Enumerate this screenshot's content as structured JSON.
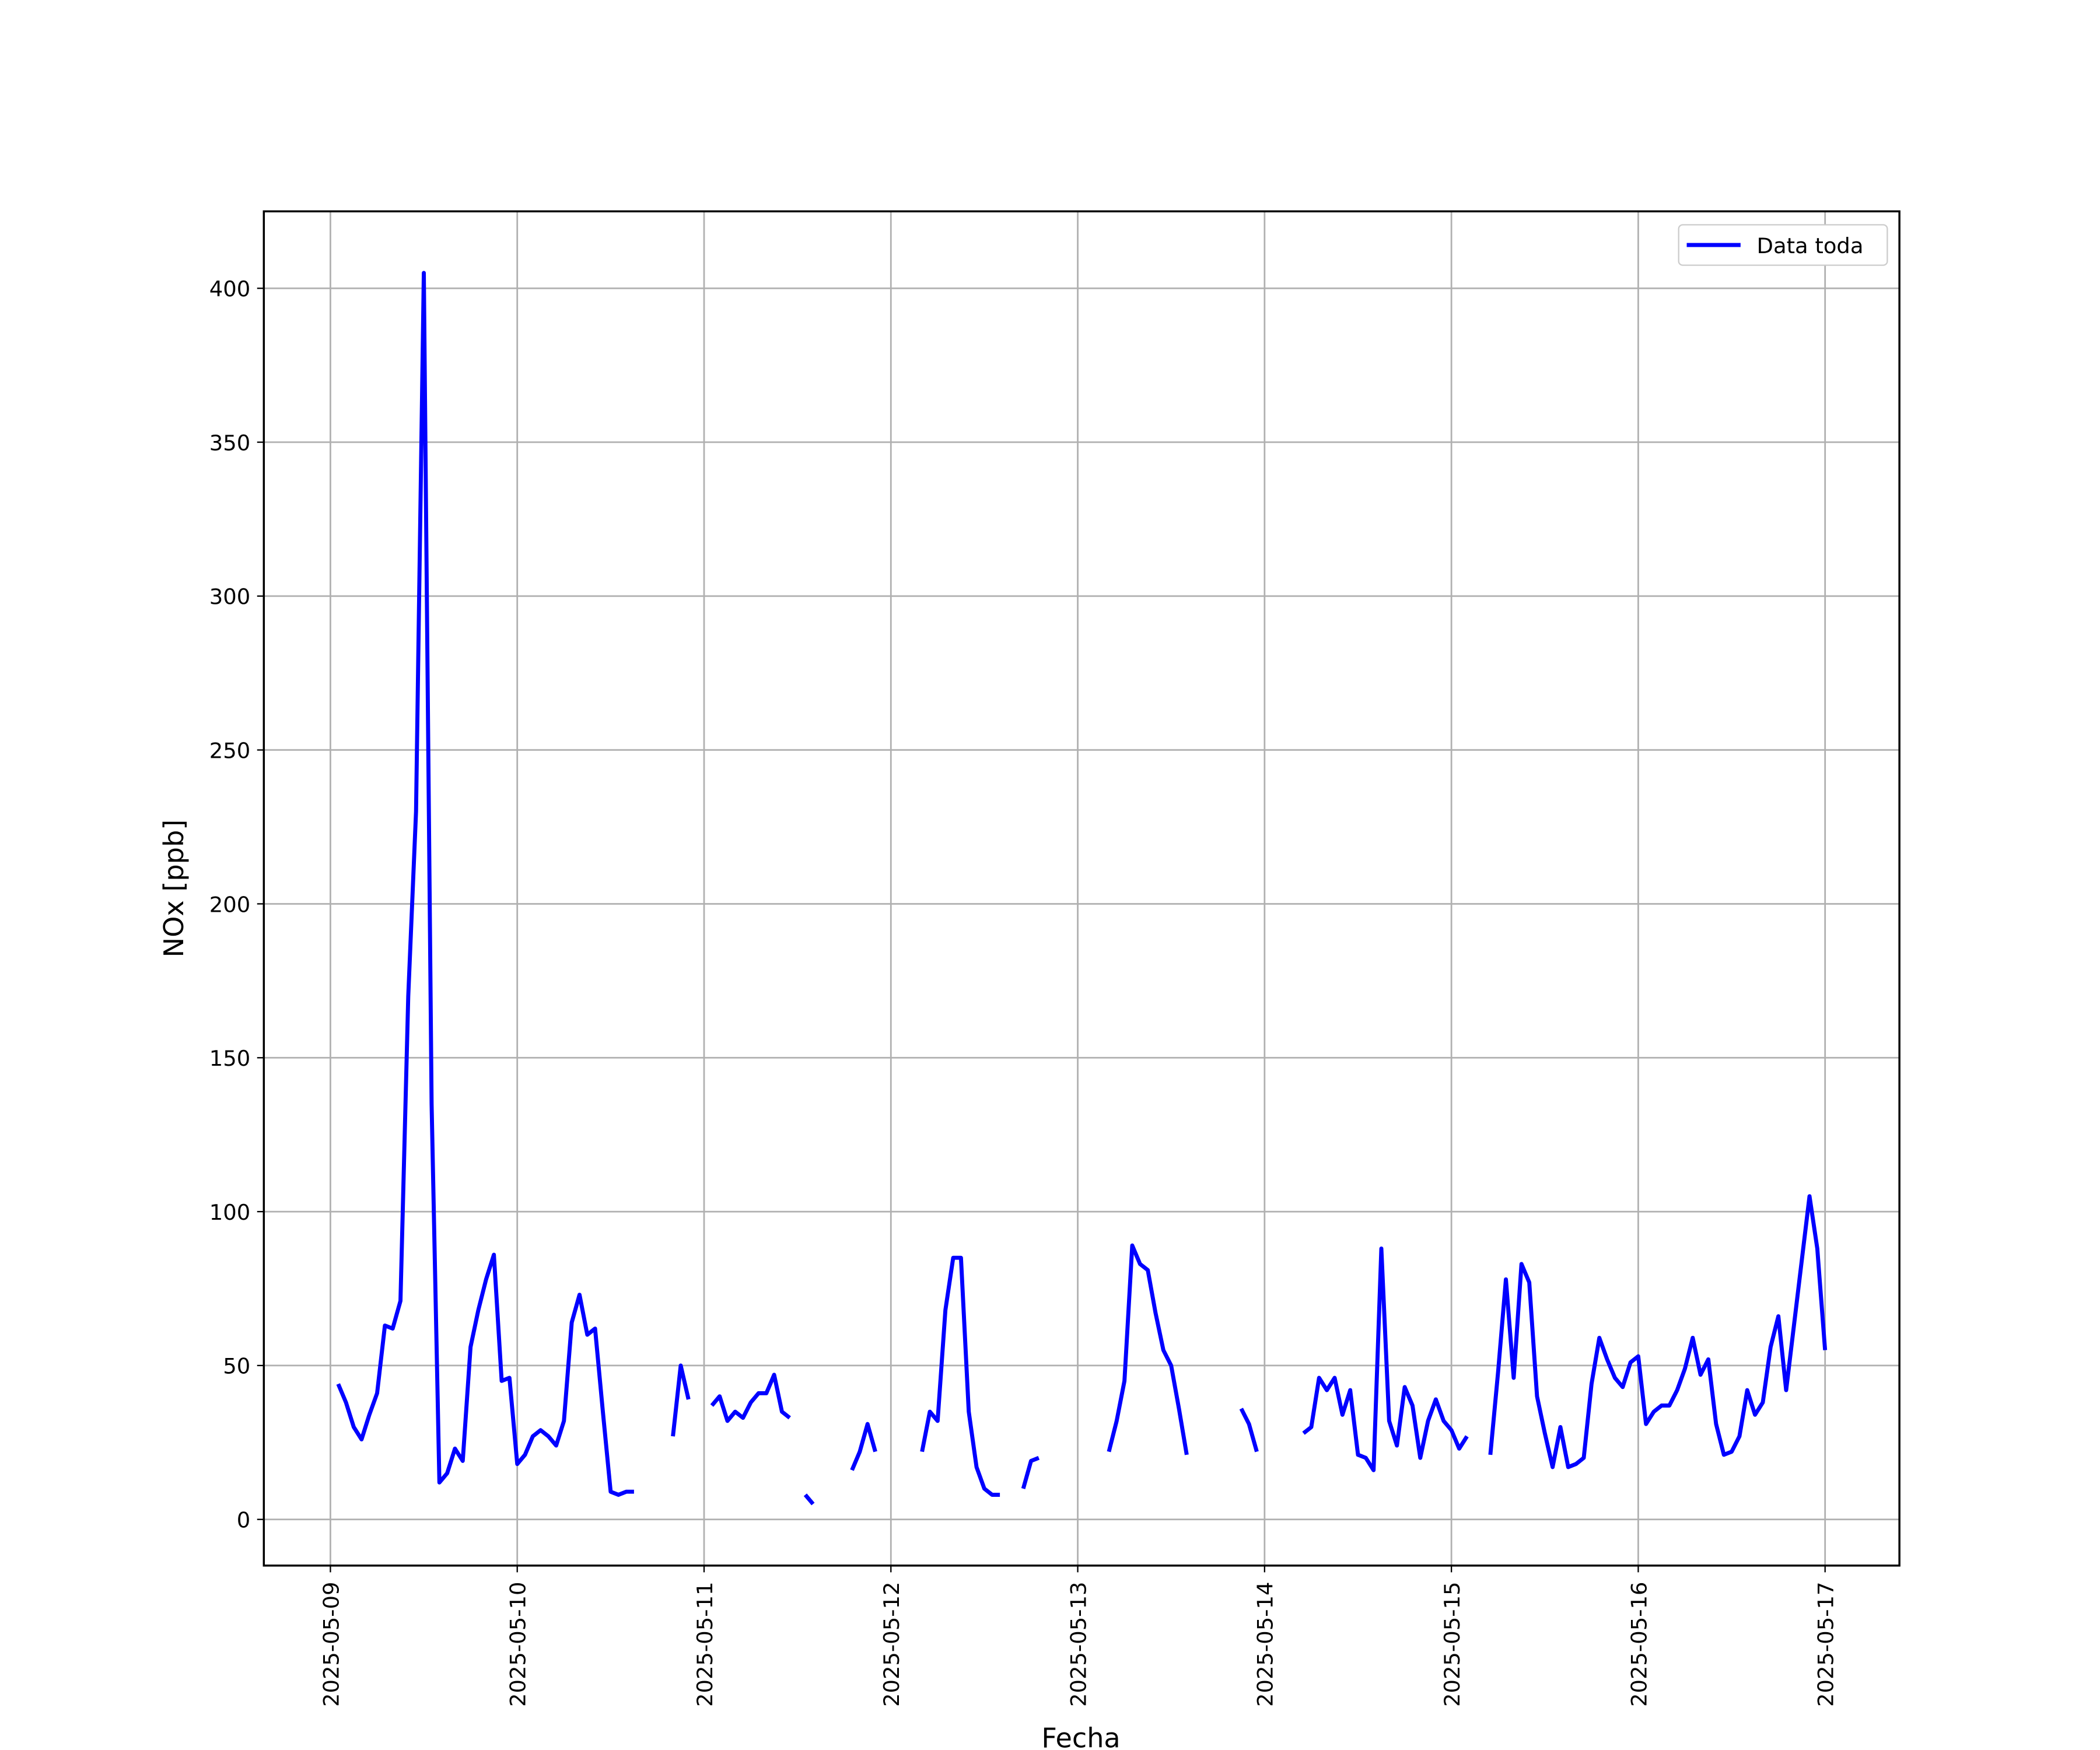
{
  "chart_data": {
    "type": "line",
    "x_label": "Fecha",
    "y_label": "NOx [ppb]",
    "x": [
      "2025-05-09 01:00",
      "2025-05-09 02:00",
      "2025-05-09 03:00",
      "2025-05-09 04:00",
      "2025-05-09 05:00",
      "2025-05-09 06:00",
      "2025-05-09 07:00",
      "2025-05-09 08:00",
      "2025-05-09 09:00",
      "2025-05-09 10:00",
      "2025-05-09 11:00",
      "2025-05-09 12:00",
      "2025-05-09 13:00",
      "2025-05-09 14:00",
      "2025-05-09 15:00",
      "2025-05-09 16:00",
      "2025-05-09 17:00",
      "2025-05-09 18:00",
      "2025-05-09 19:00",
      "2025-05-09 20:00",
      "2025-05-09 21:00",
      "2025-05-09 22:00",
      "2025-05-09 23:00",
      "2025-05-10 00:00",
      "2025-05-10 01:00",
      "2025-05-10 02:00",
      "2025-05-10 03:00",
      "2025-05-10 04:00",
      "2025-05-10 05:00",
      "2025-05-10 06:00",
      "2025-05-10 07:00",
      "2025-05-10 08:00",
      "2025-05-10 09:00",
      "2025-05-10 10:00",
      "2025-05-10 11:00",
      "2025-05-10 12:00",
      "2025-05-10 13:00",
      "2025-05-10 14:00",
      "2025-05-10 15:00",
      "2025-05-10 16:00",
      "2025-05-10 20:00",
      "2025-05-10 21:00",
      "2025-05-10 22:00",
      "2025-05-10 23:00",
      "2025-05-11 01:00",
      "2025-05-11 02:00",
      "2025-05-11 03:00",
      "2025-05-11 04:00",
      "2025-05-11 05:00",
      "2025-05-11 06:00",
      "2025-05-11 07:00",
      "2025-05-11 08:00",
      "2025-05-11 09:00",
      "2025-05-11 10:00",
      "2025-05-11 11:00",
      "2025-05-11 12:00",
      "2025-05-11 13:00",
      "2025-05-11 14:00",
      "2025-05-11 15:00",
      "2025-05-11 19:00",
      "2025-05-11 20:00",
      "2025-05-11 21:00",
      "2025-05-11 22:00",
      "2025-05-11 23:00",
      "2025-05-12 04:00",
      "2025-05-12 05:00",
      "2025-05-12 06:00",
      "2025-05-12 07:00",
      "2025-05-12 08:00",
      "2025-05-12 09:00",
      "2025-05-12 10:00",
      "2025-05-12 11:00",
      "2025-05-12 12:00",
      "2025-05-12 13:00",
      "2025-05-12 14:00",
      "2025-05-12 15:00",
      "2025-05-12 17:00",
      "2025-05-12 18:00",
      "2025-05-12 19:00",
      "2025-05-12 20:00",
      "2025-05-13 04:00",
      "2025-05-13 05:00",
      "2025-05-13 06:00",
      "2025-05-13 07:00",
      "2025-05-13 08:00",
      "2025-05-13 09:00",
      "2025-05-13 10:00",
      "2025-05-13 11:00",
      "2025-05-13 12:00",
      "2025-05-13 13:00",
      "2025-05-13 14:00",
      "2025-05-13 15:00",
      "2025-05-13 21:00",
      "2025-05-13 22:00",
      "2025-05-13 23:00",
      "2025-05-14 00:00",
      "2025-05-14 05:00",
      "2025-05-14 06:00",
      "2025-05-14 07:00",
      "2025-05-14 08:00",
      "2025-05-14 09:00",
      "2025-05-14 10:00",
      "2025-05-14 11:00",
      "2025-05-14 12:00",
      "2025-05-14 13:00",
      "2025-05-14 14:00",
      "2025-05-14 15:00",
      "2025-05-14 16:00",
      "2025-05-14 17:00",
      "2025-05-14 18:00",
      "2025-05-14 19:00",
      "2025-05-14 20:00",
      "2025-05-14 21:00",
      "2025-05-14 22:00",
      "2025-05-14 23:00",
      "2025-05-15 00:00",
      "2025-05-15 01:00",
      "2025-05-15 02:00",
      "2025-05-15 03:00",
      "2025-05-15 05:00",
      "2025-05-15 06:00",
      "2025-05-15 07:00",
      "2025-05-15 08:00",
      "2025-05-15 09:00",
      "2025-05-15 10:00",
      "2025-05-15 11:00",
      "2025-05-15 12:00",
      "2025-05-15 13:00",
      "2025-05-15 14:00",
      "2025-05-15 15:00",
      "2025-05-15 16:00",
      "2025-05-15 17:00",
      "2025-05-15 18:00",
      "2025-05-15 19:00",
      "2025-05-15 20:00",
      "2025-05-15 21:00",
      "2025-05-15 22:00",
      "2025-05-15 23:00",
      "2025-05-16 00:00",
      "2025-05-16 01:00",
      "2025-05-16 02:00",
      "2025-05-16 03:00",
      "2025-05-16 04:00",
      "2025-05-16 05:00",
      "2025-05-16 06:00",
      "2025-05-16 07:00",
      "2025-05-16 08:00",
      "2025-05-16 09:00",
      "2025-05-16 10:00",
      "2025-05-16 11:00",
      "2025-05-16 12:00",
      "2025-05-16 13:00",
      "2025-05-16 14:00",
      "2025-05-16 15:00",
      "2025-05-16 16:00",
      "2025-05-16 17:00",
      "2025-05-16 18:00",
      "2025-05-16 19:00",
      "2025-05-16 20:00",
      "2025-05-16 21:00",
      "2025-05-16 22:00",
      "2025-05-16 23:00",
      "2025-05-17 00:00"
    ],
    "series": [
      {
        "name": "Data toda",
        "color": "#0000ff",
        "values": [
          44,
          38,
          30,
          26,
          34,
          41,
          63,
          62,
          71,
          170,
          230,
          405,
          135,
          12,
          15,
          23,
          19,
          56,
          68,
          78,
          86,
          45,
          46,
          18,
          21,
          27,
          29,
          27,
          24,
          32,
          64,
          73,
          60,
          62,
          35,
          9,
          8,
          9,
          9,
          null,
          27,
          50,
          39,
          null,
          37,
          40,
          32,
          35,
          33,
          38,
          41,
          41,
          47,
          35,
          33,
          null,
          8,
          5,
          null,
          16,
          22,
          31,
          22,
          null,
          22,
          35,
          32,
          68,
          85,
          85,
          35,
          17,
          10,
          8,
          8,
          null,
          10,
          19,
          20,
          null,
          22,
          32,
          45,
          89,
          83,
          81,
          67,
          55,
          50,
          36,
          21,
          null,
          36,
          31,
          22,
          null,
          28,
          30,
          46,
          42,
          46,
          34,
          42,
          21,
          20,
          16,
          88,
          32,
          24,
          43,
          37,
          20,
          32,
          39,
          32,
          29,
          23,
          27,
          null,
          21,
          48,
          78,
          46,
          83,
          77,
          40,
          28,
          17,
          30,
          17,
          18,
          20,
          44,
          59,
          52,
          46,
          43,
          51,
          53,
          31,
          35,
          37,
          37,
          42,
          49,
          59,
          47,
          52,
          31,
          21,
          22,
          27,
          42,
          34,
          38,
          56,
          66,
          42,
          63,
          84,
          105,
          88,
          55
        ]
      }
    ],
    "xlim": [
      "2025-05-08 15:27",
      "2025-05-17 09:33"
    ],
    "xticks": [
      "2025-05-09",
      "2025-05-10",
      "2025-05-11",
      "2025-05-12",
      "2025-05-13",
      "2025-05-14",
      "2025-05-15",
      "2025-05-16",
      "2025-05-17"
    ],
    "ylim": [
      -15,
      425
    ],
    "yticks": [
      0,
      50,
      100,
      150,
      200,
      250,
      300,
      350,
      400
    ],
    "grid": true,
    "legend": "upper right"
  }
}
